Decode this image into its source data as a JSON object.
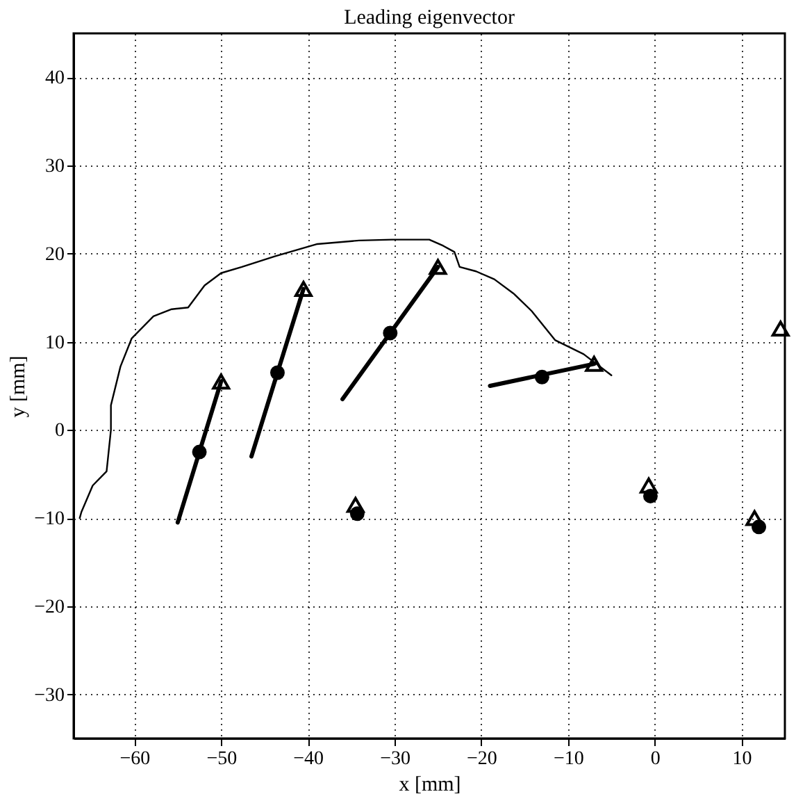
{
  "chart_data": {
    "type": "line",
    "title": "Leading eigenvector",
    "xlabel": "x [mm]",
    "ylabel": "y [mm]",
    "xlim": [
      -67,
      15
    ],
    "ylim": [
      -35,
      45
    ],
    "xticks": [
      -60,
      -50,
      -40,
      -30,
      -20,
      -10,
      0,
      10
    ],
    "yticks": [
      -30,
      -20,
      -10,
      0,
      10,
      20,
      30,
      40
    ],
    "grid": true,
    "series": [
      {
        "color": "#000000",
        "marker": "none",
        "x": [
          -66.3,
          -66.1,
          -64.8,
          -63.2,
          -62.7,
          -62.7,
          -61.6,
          -60.3,
          -57.8,
          -55.7,
          -53.8,
          -51.9,
          -50,
          -47.6,
          -43.8,
          -38.9,
          -34.1,
          -30.3,
          -26,
          -24.4,
          -23.1,
          -22.5,
          -20.6,
          -18.5,
          -16.3,
          -14.2,
          -11.5,
          -8.2,
          -5
        ],
        "values": [
          -10,
          -9.3,
          -6.3,
          -4.7,
          0,
          2.8,
          7.2,
          10.4,
          12.9,
          13.7,
          13.9,
          16.4,
          17.8,
          18.5,
          19.7,
          21.1,
          21.5,
          21.6,
          21.6,
          20.9,
          20.2,
          18.5,
          18,
          17.1,
          15.5,
          13.5,
          10.2,
          8.6,
          6.2
        ]
      },
      {
        "color": "#000000",
        "marker": "none",
        "x": [
          -55,
          -50
        ],
        "values": [
          -10.5,
          5.5
        ]
      },
      {
        "color": "#000000",
        "marker": "none",
        "x": [
          -46.5,
          -40.5
        ],
        "values": [
          -3,
          16
        ]
      },
      {
        "color": "#000000",
        "marker": "none",
        "x": [
          -36,
          -25
        ],
        "values": [
          3.5,
          18.5
        ]
      },
      {
        "color": "#000000",
        "marker": "none",
        "x": [
          -19,
          -7
        ],
        "values": [
          5,
          7.5
        ]
      },
      {
        "type": "scatter",
        "color": "#000000",
        "marker": "circle",
        "x": [
          -52.5,
          -43.5,
          -30.5,
          -13,
          -34.3,
          -0.5,
          12
        ],
        "values": [
          -2.5,
          6.5,
          11,
          6,
          -9.5,
          -7.5,
          -11
        ]
      },
      {
        "type": "scatter",
        "color": "#000000",
        "marker": "triangle",
        "x": [
          -50,
          -40.5,
          -25,
          -7,
          -34.5,
          -0.7,
          11.5,
          14.5
        ],
        "values": [
          5.5,
          16,
          18.5,
          7.5,
          -8.5,
          -6.3,
          -10,
          11.5
        ]
      }
    ]
  }
}
